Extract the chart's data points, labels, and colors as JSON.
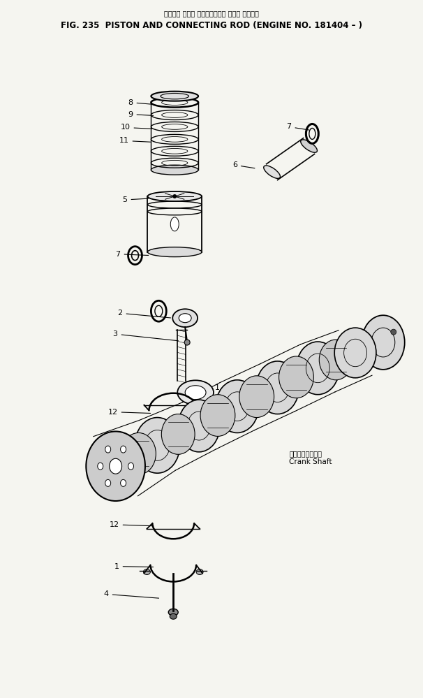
{
  "title_japanese": "ピストン および コネクティング ロッド 適用号機",
  "title_english": "FIG. 235  PISTON AND CONNECTING ROD (ENGINE NO. 181404 – )",
  "background_color": "#f5f5f0",
  "fig_width": 6.06,
  "fig_height": 9.99,
  "dpi": 100,
  "crankshaft_label_jp": "クランクシャフト",
  "crankshaft_label_en": "Crank Shaft",
  "text_color": "#000000",
  "line_color": "#000000"
}
